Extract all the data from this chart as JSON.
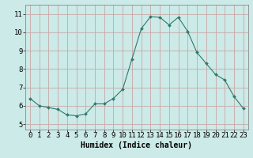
{
  "x": [
    0,
    1,
    2,
    3,
    4,
    5,
    6,
    7,
    8,
    9,
    10,
    11,
    12,
    13,
    14,
    15,
    16,
    17,
    18,
    19,
    20,
    21,
    22,
    23
  ],
  "y": [
    6.4,
    6.0,
    5.9,
    5.8,
    5.5,
    5.45,
    5.55,
    6.1,
    6.1,
    6.4,
    6.9,
    8.55,
    10.2,
    10.85,
    10.82,
    10.4,
    10.82,
    10.05,
    8.9,
    8.3,
    7.7,
    7.4,
    6.5,
    5.85
  ],
  "xlabel": "Humidex (Indice chaleur)",
  "xlim": [
    -0.5,
    23.5
  ],
  "ylim": [
    4.7,
    11.5
  ],
  "yticks": [
    5,
    6,
    7,
    8,
    9,
    10,
    11
  ],
  "xticks": [
    0,
    1,
    2,
    3,
    4,
    5,
    6,
    7,
    8,
    9,
    10,
    11,
    12,
    13,
    14,
    15,
    16,
    17,
    18,
    19,
    20,
    21,
    22,
    23
  ],
  "line_color": "#2d7a6e",
  "marker_color": "#2d7a6e",
  "bg_color": "#cceae7",
  "grid_color": "#c8a8a8",
  "border_color": "#888888",
  "xlabel_fontsize": 7,
  "tick_fontsize": 6.5
}
